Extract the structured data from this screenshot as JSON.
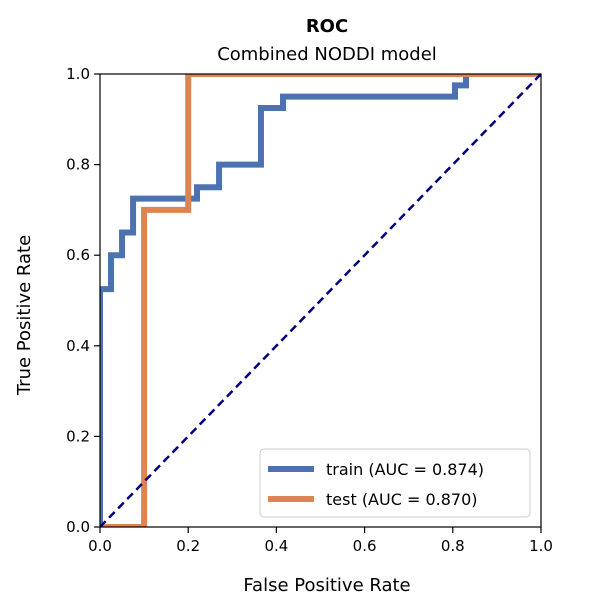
{
  "chart_data": {
    "type": "line",
    "title": "ROC",
    "subtitle": "Combined NODDI model",
    "xlabel": "False Positive Rate",
    "ylabel": "True Positive Rate",
    "xlim": [
      0.0,
      1.0
    ],
    "ylim": [
      0.0,
      1.0
    ],
    "xticks": [
      "0.0",
      "0.2",
      "0.4",
      "0.6",
      "0.8",
      "1.0"
    ],
    "yticks": [
      "0.0",
      "0.2",
      "0.4",
      "0.6",
      "0.8",
      "1.0"
    ],
    "grid": false,
    "legend_position": "lower-right",
    "series": [
      {
        "name": "train (AUC = 0.874)",
        "color": "#4c72b0",
        "x": [
          0.0,
          0.0,
          0.025,
          0.025,
          0.05,
          0.05,
          0.075,
          0.075,
          0.22,
          0.22,
          0.27,
          0.27,
          0.365,
          0.365,
          0.415,
          0.415,
          0.805,
          0.805,
          0.83,
          0.83,
          1.0
        ],
        "y": [
          0.0,
          0.525,
          0.525,
          0.6,
          0.6,
          0.65,
          0.65,
          0.725,
          0.725,
          0.75,
          0.75,
          0.8,
          0.8,
          0.925,
          0.925,
          0.95,
          0.95,
          0.975,
          0.975,
          1.0,
          1.0
        ]
      },
      {
        "name": "test (AUC = 0.870)",
        "color": "#dd8452",
        "x": [
          0.0,
          0.1,
          0.1,
          0.2,
          0.2,
          1.0
        ],
        "y": [
          0.0,
          0.0,
          0.7,
          0.7,
          1.0,
          1.0
        ]
      }
    ],
    "reference_line": {
      "color": "#000080",
      "x": [
        0.0,
        1.0
      ],
      "y": [
        0.0,
        1.0
      ]
    }
  }
}
